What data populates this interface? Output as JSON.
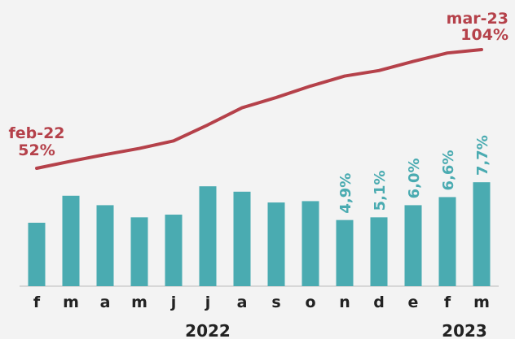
{
  "chart_data": {
    "type": "bar-line",
    "categories": [
      "f",
      "m",
      "a",
      "m",
      "j",
      "j",
      "a",
      "s",
      "o",
      "n",
      "d",
      "e",
      "f",
      "m"
    ],
    "years": [
      "2022",
      "2023"
    ],
    "bars": {
      "color": "#4aabb1",
      "values": [
        4.7,
        6.7,
        6.0,
        5.1,
        5.3,
        7.4,
        7.0,
        6.2,
        6.3,
        4.9,
        5.1,
        6.0,
        6.6,
        7.7
      ],
      "value_labels": [
        null,
        null,
        null,
        null,
        null,
        null,
        null,
        null,
        null,
        "4,9%",
        "5,1%",
        "6,0%",
        "6,6%",
        "7,7%"
      ]
    },
    "line": {
      "color": "#b5414a",
      "values": [
        52,
        55.1,
        58,
        60.7,
        64,
        71,
        78.5,
        83,
        88,
        92.4,
        94.8,
        98.8,
        102.5,
        104
      ],
      "value_labels": [
        "52%",
        null,
        null,
        null,
        null,
        null,
        null,
        null,
        null,
        null,
        null,
        null,
        null,
        "104%"
      ],
      "annotations": [
        "feb-22",
        null,
        null,
        null,
        null,
        null,
        null,
        null,
        null,
        null,
        null,
        null,
        null,
        "mar-23"
      ]
    }
  }
}
